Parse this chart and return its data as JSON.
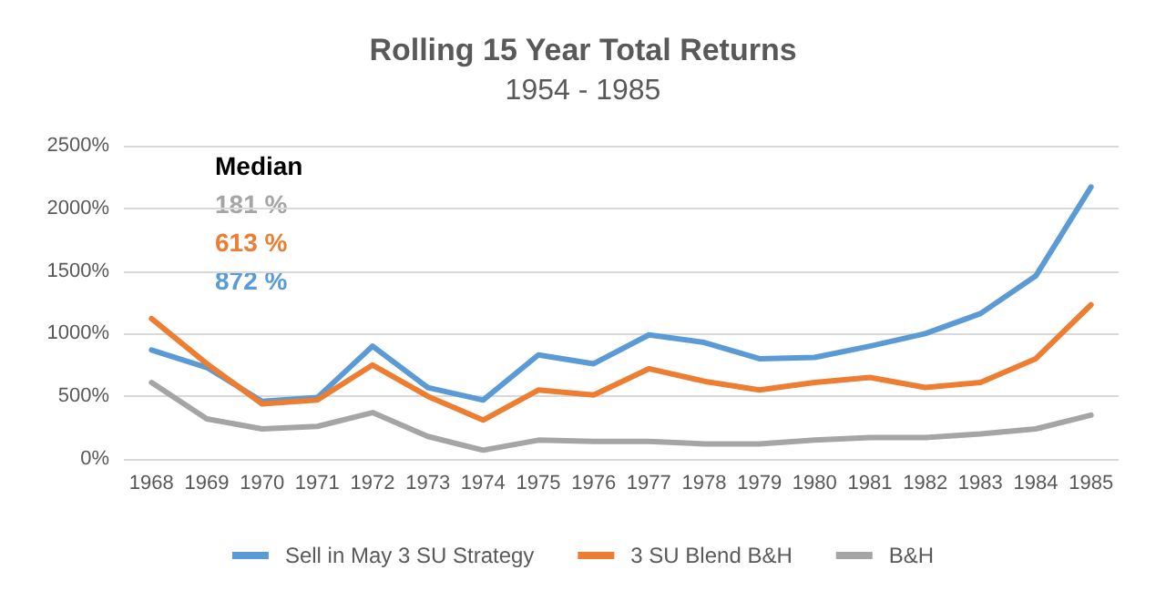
{
  "chart_data": {
    "type": "line",
    "title": "Rolling 15 Year Total Returns",
    "subtitle": "1954 - 1985",
    "categories": [
      "1968",
      "1969",
      "1970",
      "1971",
      "1972",
      "1973",
      "1974",
      "1975",
      "1976",
      "1977",
      "1978",
      "1979",
      "1980",
      "1981",
      "1982",
      "1983",
      "1984",
      "1985"
    ],
    "series": [
      {
        "name": "Sell in May 3 SU Strategy",
        "color": "#5b9bd5",
        "values": [
          870,
          730,
          460,
          490,
          900,
          570,
          470,
          830,
          760,
          990,
          930,
          800,
          810,
          900,
          1000,
          1160,
          1460,
          2170
        ]
      },
      {
        "name": "3 SU Blend B&H",
        "color": "#ed7d31",
        "values": [
          1120,
          760,
          440,
          470,
          750,
          500,
          310,
          550,
          510,
          720,
          620,
          550,
          610,
          650,
          570,
          610,
          800,
          1230
        ]
      },
      {
        "name": "B&H",
        "color": "#a5a5a5",
        "values": [
          610,
          320,
          240,
          260,
          370,
          180,
          70,
          150,
          140,
          140,
          120,
          120,
          150,
          170,
          170,
          200,
          240,
          350
        ]
      }
    ],
    "annotations": [
      "Median",
      "181 %",
      "613 %",
      "872 %"
    ],
    "ylim": [
      0,
      2500
    ],
    "yticks": [
      {
        "value": 0,
        "label": "0%"
      },
      {
        "value": 500,
        "label": "500%"
      },
      {
        "value": 1000,
        "label": "1000%"
      },
      {
        "value": 1500,
        "label": "1500%"
      },
      {
        "value": 2000,
        "label": "2000%"
      },
      {
        "value": 2500,
        "label": "2500%"
      }
    ],
    "grid": "y",
    "legend": "bottom",
    "marker": "none",
    "line_style": "solid"
  }
}
